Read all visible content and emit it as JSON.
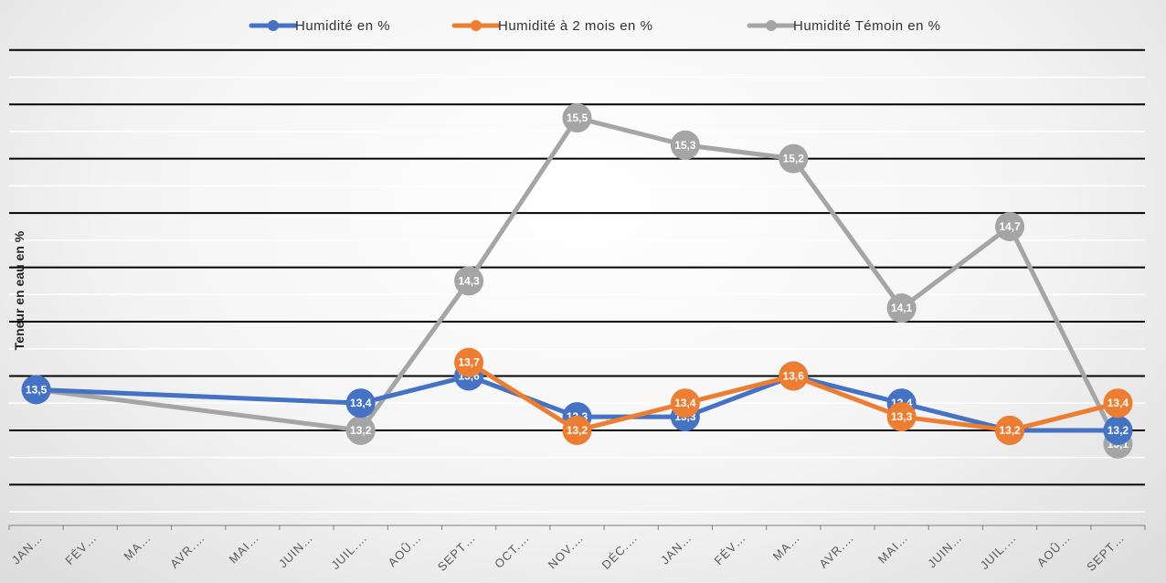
{
  "chart_data": {
    "type": "line",
    "title": "",
    "xlabel": "",
    "ylabel": "Teneur en eau en %",
    "categories": [
      "JAN…",
      "FÉV…",
      "MA…",
      "AVR.…",
      "MAI…",
      "JUIN…",
      "JUIL.…",
      "AOÛ…",
      "SEPT…",
      "OCT.…",
      "NOV.…",
      "DÉC.…",
      "JAN…",
      "FÉV…",
      "MA…",
      "AVR.…",
      "MAI…",
      "JUIN…",
      "JUIL.…",
      "AOÛ…",
      "SEPT…"
    ],
    "ylim": [
      12.5,
      16.2
    ],
    "gridlines": [
      12.6,
      12.8,
      13.0,
      13.2,
      13.4,
      13.6,
      13.8,
      14.0,
      14.2,
      14.4,
      14.6,
      14.8,
      15.0,
      15.2,
      15.4,
      15.6,
      15.8,
      16.0
    ],
    "legend_position": "top",
    "series": [
      {
        "name": "Humidité en %",
        "color": "#4472C4",
        "values": [
          13.5,
          null,
          null,
          null,
          null,
          null,
          13.4,
          null,
          13.6,
          null,
          13.3,
          null,
          13.3,
          null,
          13.6,
          null,
          13.4,
          null,
          13.2,
          null,
          13.2
        ],
        "labels": [
          "13,5",
          "",
          "",
          "",
          "",
          "",
          "13,4",
          "",
          "13,6",
          "",
          "13,3",
          "",
          "13,3",
          "",
          "13,6",
          "",
          "13,4",
          "",
          "13,2",
          "",
          "13,2"
        ]
      },
      {
        "name": "Humidité à 2 mois en %",
        "color": "#ED7D31",
        "values": [
          null,
          null,
          null,
          null,
          null,
          null,
          null,
          null,
          13.7,
          null,
          13.2,
          null,
          13.4,
          null,
          13.6,
          null,
          13.3,
          null,
          13.2,
          null,
          13.4
        ],
        "labels": [
          "",
          "",
          "",
          "",
          "",
          "",
          "",
          "",
          "13,7",
          "",
          "13,2",
          "",
          "13,4",
          "",
          "13,6",
          "",
          "13,3",
          "",
          "13,2",
          "",
          "13,4"
        ]
      },
      {
        "name": "Humidité Témoin en %",
        "color": "#A5A5A5",
        "values": [
          13.5,
          null,
          null,
          null,
          null,
          null,
          13.2,
          null,
          14.3,
          null,
          15.5,
          null,
          15.3,
          null,
          15.2,
          null,
          14.1,
          null,
          14.7,
          null,
          13.1
        ],
        "labels": [
          "13,5",
          "",
          "",
          "",
          "",
          "",
          "13,2",
          "",
          "14,3",
          "",
          "15,5",
          "",
          "15,3",
          "",
          "15,2",
          "",
          "14,1",
          "",
          "14,7",
          "",
          "13,1"
        ]
      }
    ]
  }
}
